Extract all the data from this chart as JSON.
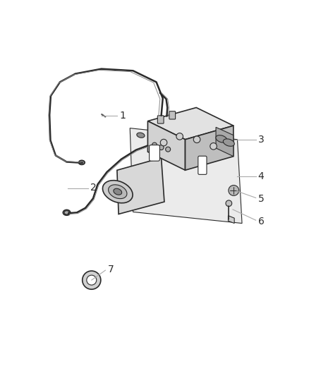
{
  "background_color": "#ffffff",
  "line_color": "#2a2a2a",
  "label_color": "#2a2a2a",
  "leader_line_color": "#aaaaaa",
  "fig_width": 4.38,
  "fig_height": 5.33,
  "dpi": 100,
  "label_fontsize": 10
}
